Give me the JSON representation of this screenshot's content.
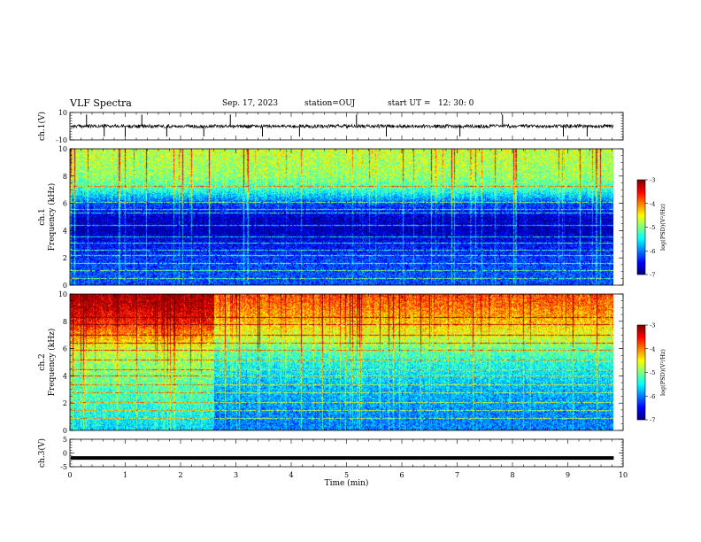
{
  "header": {
    "title": "VLF Spectra",
    "date": "Sep. 17, 2023",
    "station": "station=OUJ",
    "start": "start UT =   12: 30: 0"
  },
  "chart_data": {
    "type": "heatmap",
    "x": {
      "label": "Time (min)",
      "range": [
        0,
        10
      ],
      "ticks": [
        0,
        1,
        2,
        3,
        4,
        5,
        6,
        7,
        8,
        9,
        10
      ],
      "data_end": 9.83
    },
    "panels": [
      {
        "id": "ch1-waveform",
        "kind": "line",
        "ylabel": "ch.1(V)",
        "ylim": [
          -10,
          10
        ],
        "yticks": [
          "10",
          "-10"
        ],
        "baseline": 0,
        "spikes_min": [
          0.3,
          0.62,
          1.0,
          1.3,
          1.75,
          2.42,
          2.9,
          3.48,
          4.15,
          5.18,
          5.72,
          7.05,
          7.82,
          8.92,
          9.35
        ]
      },
      {
        "id": "ch1-spectrogram",
        "kind": "heatmap",
        "ylabel": "ch.1\nFrequency (kHz)",
        "ylim": [
          0,
          10
        ],
        "yticks": [
          "0",
          "2",
          "4",
          "6",
          "8",
          "10"
        ],
        "profile_kHz": [
          0,
          1,
          2,
          3,
          4,
          5,
          6,
          7,
          8,
          9,
          10
        ],
        "profile_log_psd": [
          -6.2,
          -6.2,
          -6.3,
          -6.5,
          -6.8,
          -6.7,
          -6.2,
          -5.3,
          -4.9,
          -4.8,
          -4.7
        ],
        "lines_kHz": [
          0.55,
          1.1,
          1.65,
          2.2,
          2.6,
          3.1,
          3.55,
          4.4,
          5.3,
          5.6,
          6.1,
          7.3
        ],
        "colorbar": {
          "label": "log(PSD)(V²/Hz)",
          "range": [
            -7,
            -3
          ],
          "ticks": [
            "-3",
            "-4",
            "-5",
            "-6",
            "-7"
          ]
        }
      },
      {
        "id": "ch2-spectrogram",
        "kind": "heatmap",
        "ylabel": "ch.2\nFrequency (kHz)",
        "ylim": [
          0,
          10
        ],
        "yticks": [
          "0",
          "2",
          "4",
          "6",
          "8",
          "10"
        ],
        "profile_kHz": [
          0,
          1,
          2,
          3,
          4,
          5,
          6,
          7,
          8,
          9,
          10
        ],
        "profile_log_psd": [
          -6.0,
          -6.0,
          -5.9,
          -5.8,
          -5.6,
          -5.4,
          -5.1,
          -4.6,
          -4.3,
          -4.0,
          -3.8
        ],
        "early_until_min": 2.6,
        "early_profile_log_psd": [
          -5.6,
          -5.5,
          -5.3,
          -5.2,
          -5.0,
          -4.9,
          -4.7,
          -4.1,
          -3.6,
          -3.3,
          -3.1
        ],
        "lines_kHz": [
          0.9,
          1.5,
          2.1,
          2.8,
          3.4,
          4.0,
          4.5,
          5.2,
          5.9,
          6.4,
          7.0,
          7.8,
          8.3
        ],
        "colorbar": {
          "label": "log(PSD)(V²/Hz)",
          "range": [
            -7,
            -3
          ],
          "ticks": [
            "-3",
            "-4",
            "-5",
            "-6",
            "-7"
          ]
        }
      },
      {
        "id": "ch3-waveform",
        "kind": "line",
        "ylabel": "ch.3(V)",
        "ylim": [
          -5,
          5
        ],
        "yticks": [
          "5",
          "0",
          "-5"
        ],
        "level": -1.8
      }
    ]
  }
}
